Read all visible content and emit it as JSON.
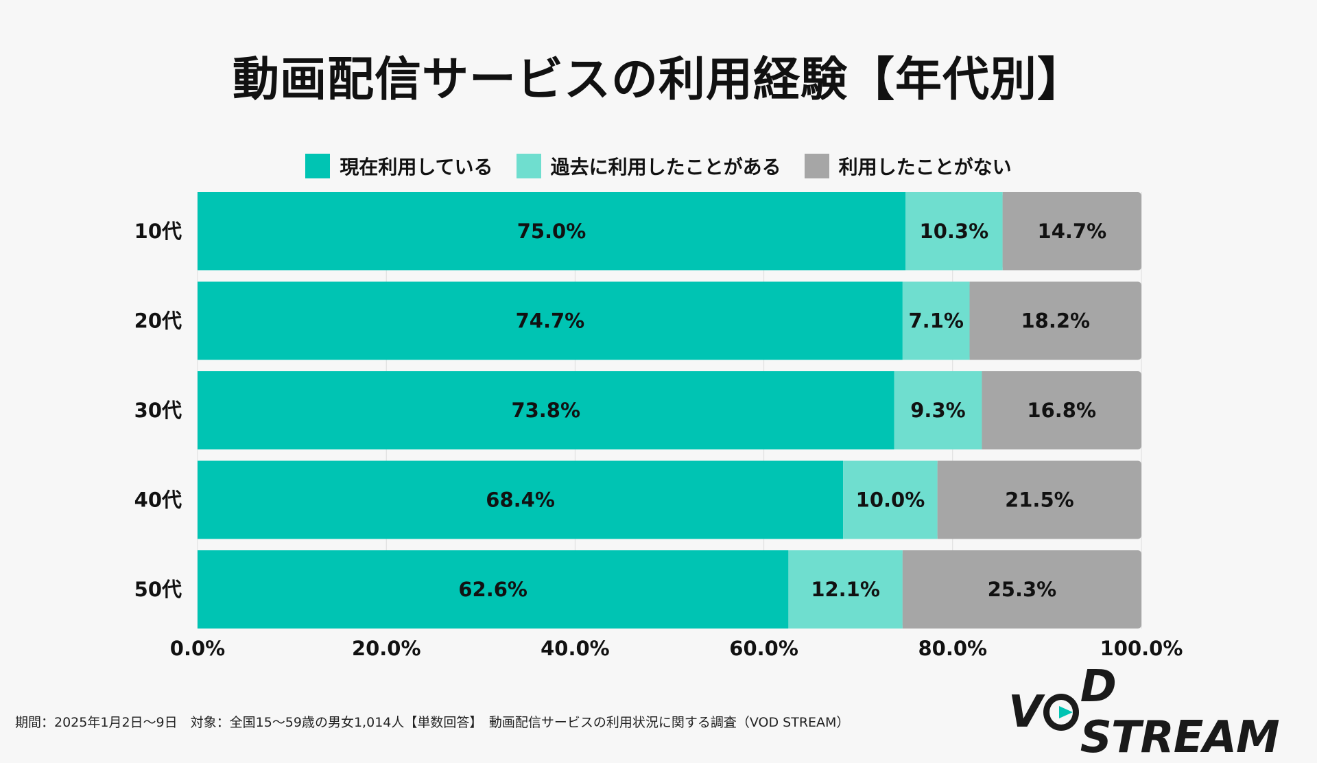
{
  "chart_data": {
    "type": "bar",
    "orientation": "horizontal",
    "stacked": true,
    "title": "動画配信サービスの利用経験【年代別】",
    "categories": [
      "10代",
      "20代",
      "30代",
      "40代",
      "50代"
    ],
    "series": [
      {
        "name": "現在利用している",
        "color": "#00c4b3",
        "values": [
          75.0,
          74.7,
          73.8,
          68.4,
          62.6
        ]
      },
      {
        "name": "過去に利用したことがある",
        "color": "#6fdecf",
        "values": [
          10.3,
          7.1,
          9.3,
          10.0,
          12.1
        ]
      },
      {
        "name": "利用したことがない",
        "color": "#a6a6a6",
        "values": [
          14.7,
          18.2,
          16.8,
          21.5,
          25.3
        ]
      }
    ],
    "xlim": [
      0,
      100
    ],
    "xticks": [
      "0.0%",
      "20.0%",
      "40.0%",
      "60.0%",
      "80.0%",
      "100.0%"
    ],
    "legend_position": "top",
    "grid": true
  },
  "footer": "期間：2025年1月2日〜9日　対象：全国15〜59歳の男女1,014人【単数回答】　動画配信サービスの利用状況に関する調査（VOD STREAM）",
  "logo": {
    "left": "V",
    "right": "D STREAM"
  }
}
